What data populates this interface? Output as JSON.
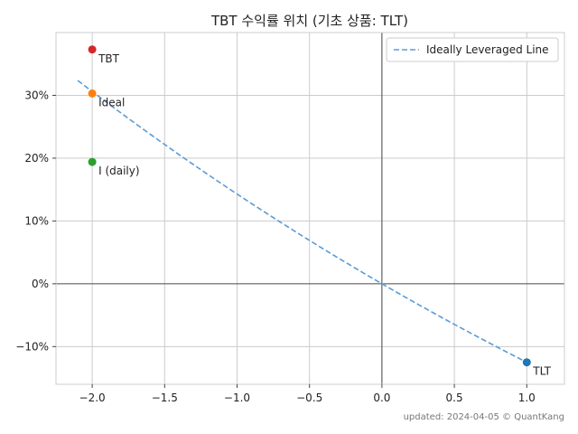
{
  "chart_data": {
    "type": "scatter",
    "title": "TBT 수익률 위치 (기초 상품: TLT)",
    "xlim": [
      -2.25,
      1.26
    ],
    "ylim": [
      -0.16,
      0.4
    ],
    "xticks": [
      -2.0,
      -1.5,
      -1.0,
      -0.5,
      0.0,
      0.5,
      1.0
    ],
    "xtick_labels": [
      "−2.0",
      "−1.5",
      "−1.0",
      "−0.5",
      "0.0",
      "0.5",
      "1.0"
    ],
    "yticks": [
      -0.1,
      0.0,
      0.1,
      0.2,
      0.3
    ],
    "ytick_labels": [
      "−10%",
      "0%",
      "10%",
      "20%",
      "30%"
    ],
    "grid": true,
    "reference_lines": {
      "x": 0,
      "y": 0
    },
    "line": {
      "name": "Ideally Leveraged Line",
      "style": "dashed",
      "color": "#5b9bd5",
      "x_range": [
        -2.1,
        1.0
      ],
      "leverage": -2,
      "underlying_return": -0.125
    },
    "points": [
      {
        "label": "TBT",
        "x": -2.0,
        "y": 0.373,
        "color": "#d62728"
      },
      {
        "label": "Ideal",
        "x": -2.0,
        "y": 0.303,
        "color": "#ff7f0e"
      },
      {
        "label": "I (daily)",
        "x": -2.0,
        "y": 0.194,
        "color": "#2ca02c"
      },
      {
        "label": "TLT",
        "x": 1.0,
        "y": -0.125,
        "color": "#1f77b4"
      }
    ],
    "legend": {
      "position": "top-right",
      "entries": [
        "Ideally Leveraged Line"
      ]
    },
    "footer": "updated: 2024-04-05 © QuantKang"
  }
}
